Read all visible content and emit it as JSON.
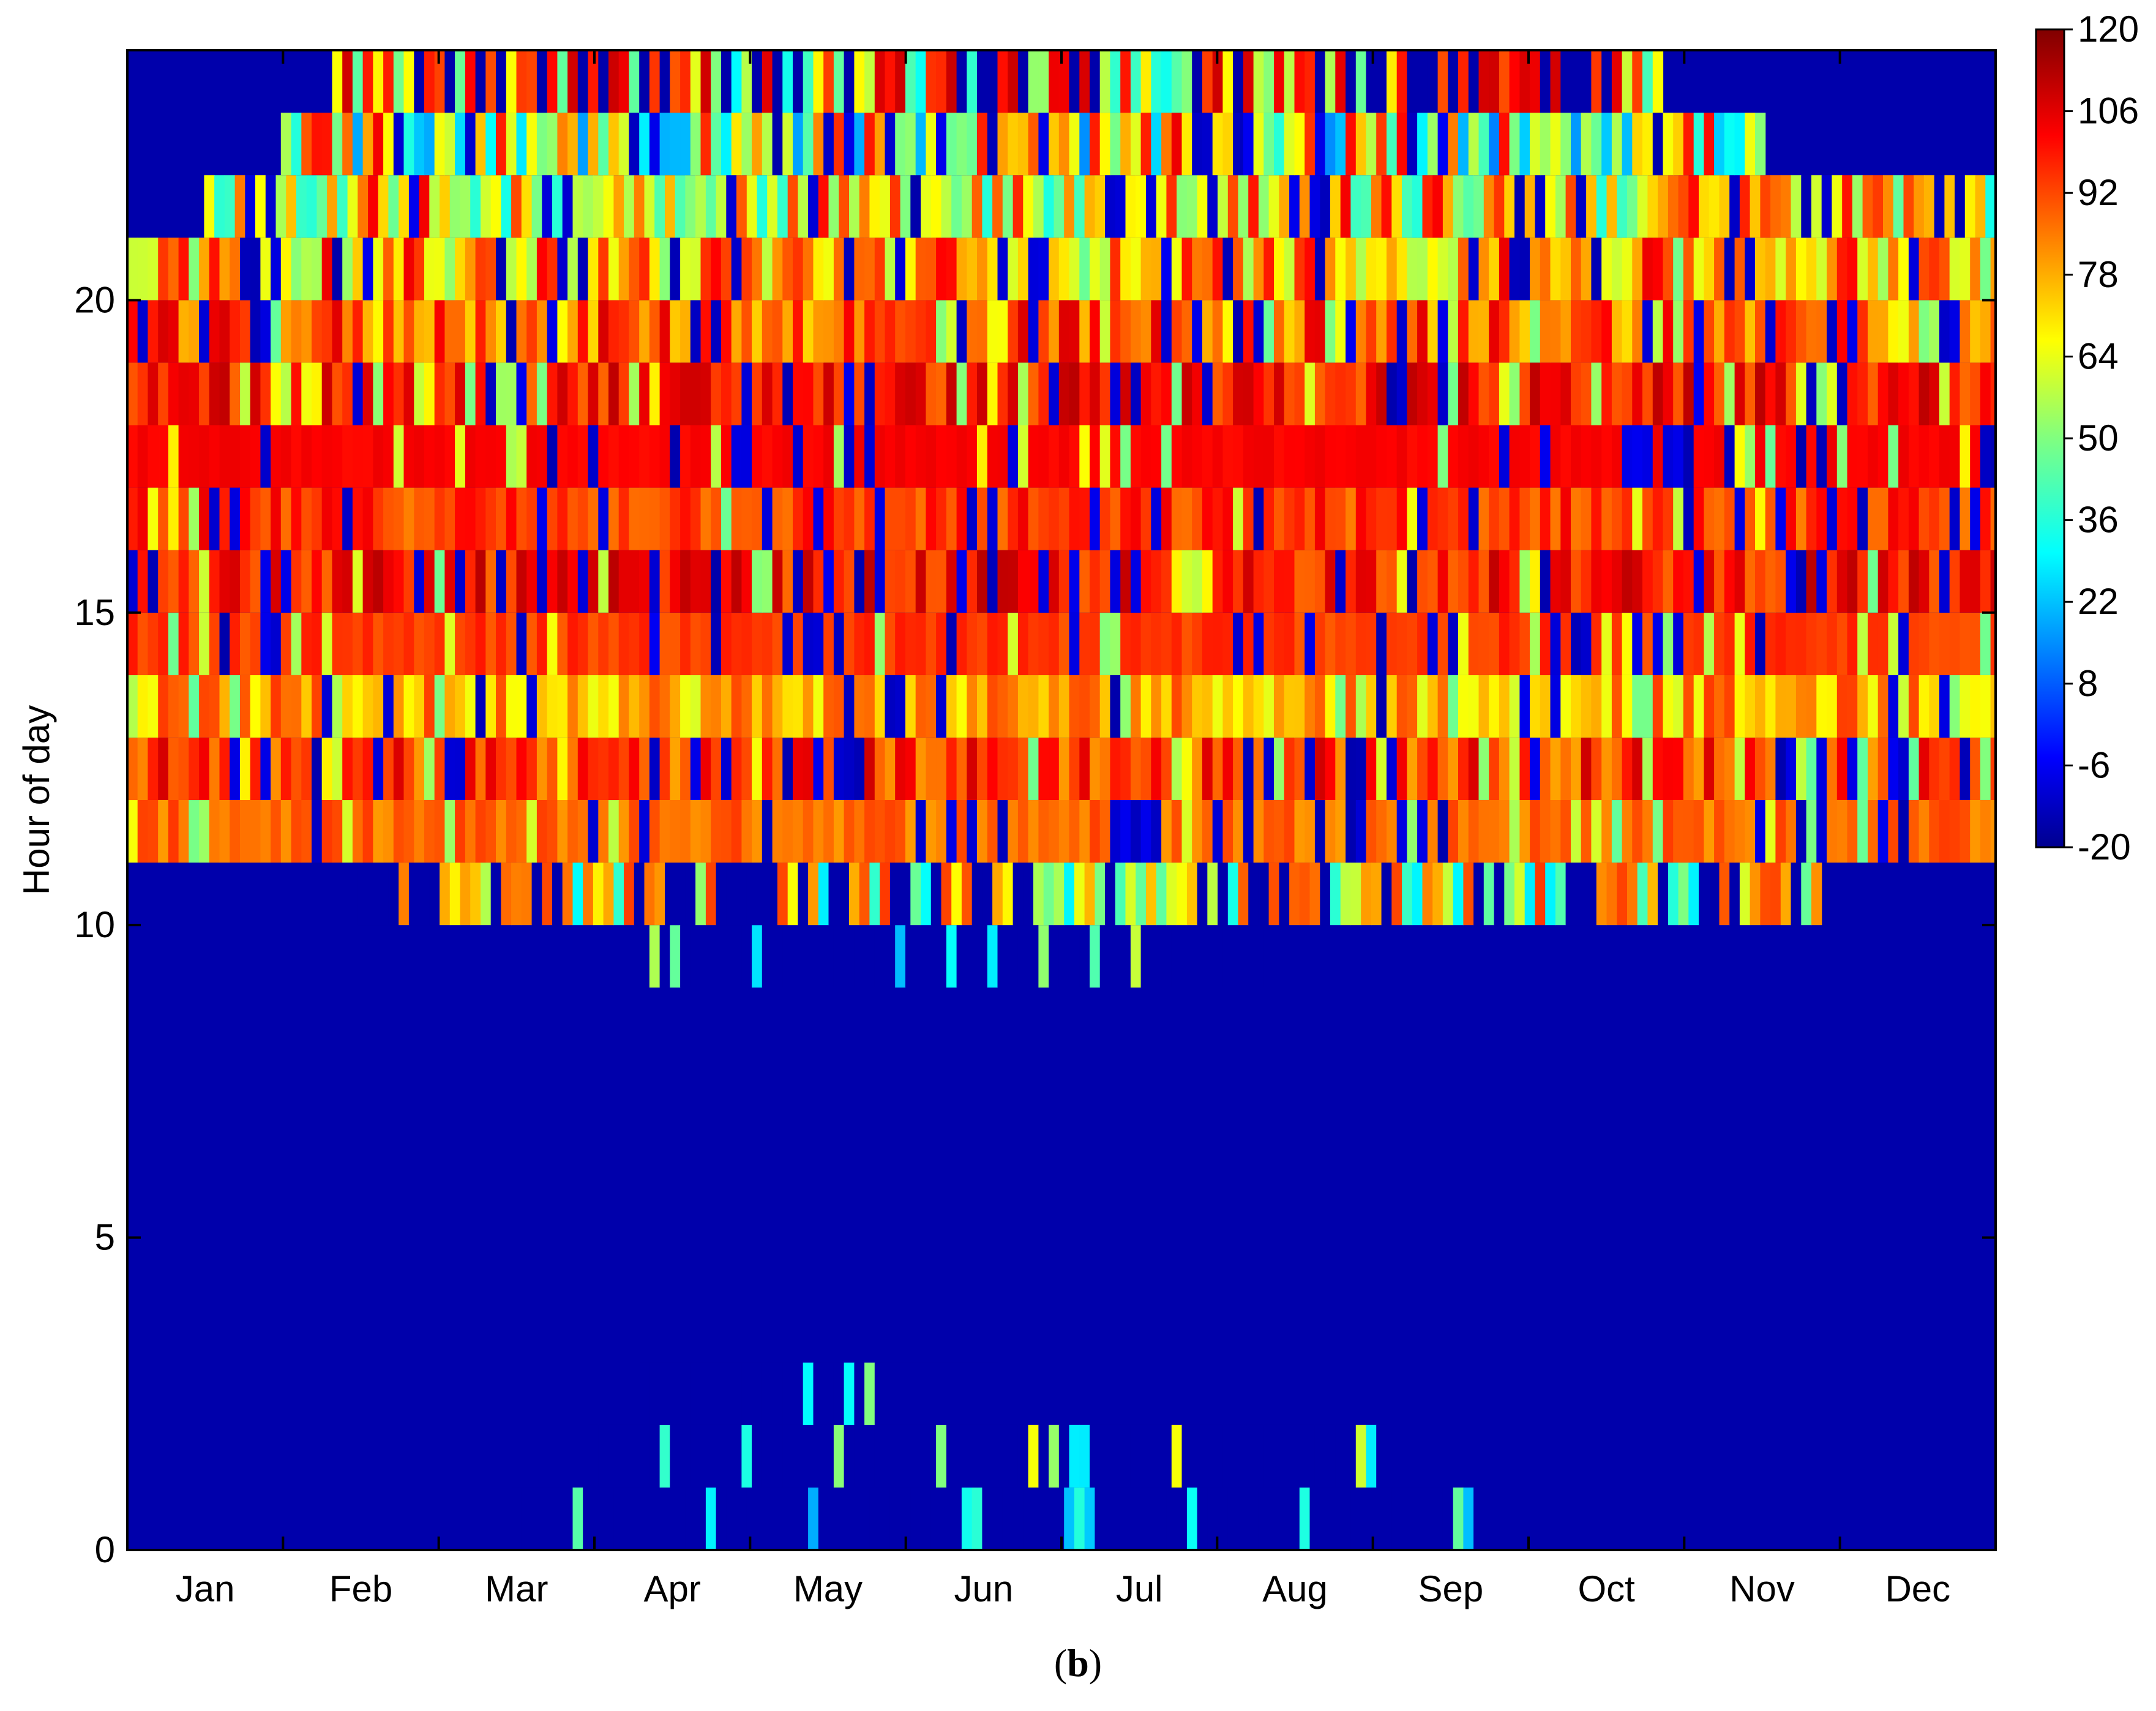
{
  "chart_data": {
    "type": "heatmap",
    "title": "",
    "xlabel": "",
    "ylabel": "Hour of day",
    "x_tick_labels": [
      "Jan",
      "Feb",
      "Mar",
      "Apr",
      "May",
      "Jun",
      "Jul",
      "Aug",
      "Sep",
      "Oct",
      "Nov",
      "Dec"
    ],
    "y_ticks": [
      0,
      5,
      10,
      15,
      20
    ],
    "ylim": [
      0,
      24
    ],
    "xlim_days": [
      0,
      365
    ],
    "colorbar": {
      "ticks": [
        120,
        106,
        92,
        78,
        64,
        50,
        36,
        22,
        8,
        -6,
        -20
      ],
      "range": [
        -20,
        120
      ],
      "colormap": "jet"
    },
    "hour_bands": [
      {
        "hour": 0,
        "mean": -14,
        "active_days": [
          75,
          265
        ],
        "peak": 40
      },
      {
        "hour": 1,
        "mean": -14,
        "active_days": [
          90,
          245
        ],
        "peak": 60
      },
      {
        "hour": 2,
        "mean": -14,
        "active_days": [
          100,
          170
        ],
        "peak": 45
      },
      {
        "hour": 9,
        "mean": -10,
        "active_days": [
          100,
          230
        ],
        "peak": 50
      },
      {
        "hour": 10,
        "mean": 30,
        "active_days": [
          45,
          330
        ],
        "peak": 95
      },
      {
        "hour": 11,
        "mean": 88,
        "active_days": [
          0,
          365
        ],
        "peak": 95
      },
      {
        "hour": 12,
        "mean": 95,
        "active_days": [
          0,
          365
        ],
        "peak": 110
      },
      {
        "hour": 13,
        "mean": 80,
        "active_days": [
          0,
          365
        ],
        "peak": 95
      },
      {
        "hour": 14,
        "mean": 95,
        "active_days": [
          0,
          365
        ],
        "peak": 100
      },
      {
        "hour": 15,
        "mean": 100,
        "active_days": [
          0,
          365
        ],
        "peak": 112
      },
      {
        "hour": 16,
        "mean": 95,
        "active_days": [
          0,
          365
        ],
        "peak": 105
      },
      {
        "hour": 17,
        "mean": 103,
        "active_days": [
          0,
          365
        ],
        "peak": 105
      },
      {
        "hour": 18,
        "mean": 100,
        "active_days": [
          0,
          365
        ],
        "peak": 112
      },
      {
        "hour": 19,
        "mean": 90,
        "active_days": [
          0,
          365
        ],
        "peak": 108
      },
      {
        "hour": 20,
        "mean": 80,
        "active_days": [
          0,
          365
        ],
        "peak": 105
      },
      {
        "hour": 21,
        "mean": 70,
        "active_days": [
          15,
          365
        ],
        "peak": 105
      },
      {
        "hour": 22,
        "mean": 60,
        "active_days": [
          30,
          320
        ],
        "peak": 105
      },
      {
        "hour": 23,
        "mean": 55,
        "active_days": [
          40,
          300
        ],
        "peak": 110
      }
    ],
    "background_value": -14
  },
  "caption": {
    "label": "b"
  }
}
